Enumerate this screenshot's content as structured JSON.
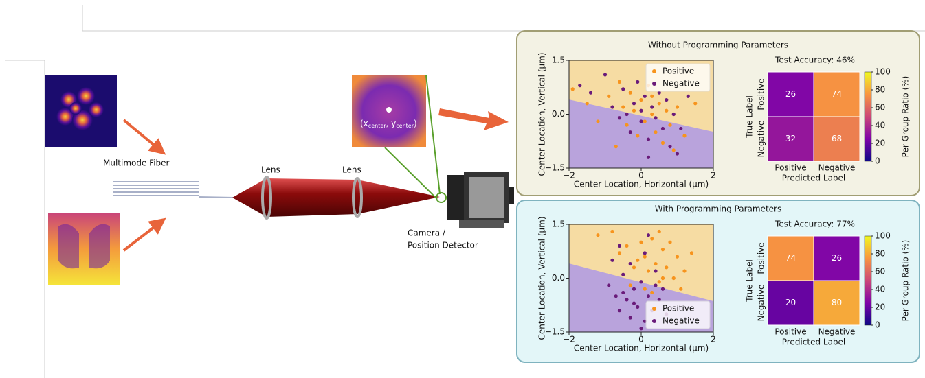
{
  "diagram": {
    "fiber_label": "Multimode Fiber",
    "lens_labels": [
      "Lens",
      "Lens"
    ],
    "camera_label": [
      "Camera /",
      "Position Detector"
    ],
    "inset_label": [
      "(x",
      "center",
      ", y",
      "center",
      ")"
    ]
  },
  "panels": [
    {
      "title": "Without Programming Parameters",
      "scatter": {
        "type": "scatter",
        "xlabel": "Center Location, Horizontal (μm)",
        "ylabel": "Center Location, Vertical (μm)",
        "xlim": [
          -2,
          2
        ],
        "ylim": [
          -1.5,
          1.5
        ],
        "xticks": [
          {
            "value": -2,
            "label": "−2"
          },
          0,
          2
        ],
        "yticks": [
          {
            "value": -1.5,
            "label": "−1.5"
          },
          {
            "value": 0,
            "label": "0.0"
          },
          1.5
        ],
        "legend": "upper right",
        "boundary": {
          "x": [
            -2,
            2
          ],
          "y": [
            0.4,
            -0.5
          ]
        },
        "series": [
          {
            "name": "Positive",
            "color": "#f7941d",
            "x": [
              -1.9,
              -1.5,
              -1.2,
              -0.9,
              -0.6,
              -0.5,
              -0.4,
              -0.3,
              -0.2,
              -0.1,
              0,
              0.1,
              0.2,
              0.3,
              0.4,
              0.5,
              0.6,
              0.7,
              0.8,
              0.9,
              1.0,
              1.2,
              1.5,
              0.3,
              -0.7
            ],
            "y": [
              0.7,
              0.3,
              -0.2,
              0.5,
              0.9,
              0.2,
              -0.3,
              0.6,
              0.1,
              -0.6,
              0.4,
              -0.2,
              0.8,
              0.0,
              -0.5,
              0.3,
              -0.8,
              0.1,
              -0.3,
              -1.0,
              0.2,
              -0.6,
              0.3,
              0.5,
              -0.9
            ]
          },
          {
            "name": "Negative",
            "color": "#6a1b7a",
            "x": [
              -1.7,
              -1.4,
              -1.0,
              -0.8,
              -0.6,
              -0.5,
              -0.3,
              -0.2,
              -0.1,
              0,
              0.1,
              0.2,
              0.3,
              0.4,
              0.5,
              0.6,
              0.7,
              0.8,
              0.9,
              1.1,
              1.3,
              -0.4,
              0.0,
              1.0,
              0.2
            ],
            "y": [
              0.8,
              0.6,
              1.1,
              0.2,
              -0.1,
              0.7,
              -0.5,
              0.3,
              0.9,
              -0.2,
              0.5,
              -0.7,
              0.2,
              -0.1,
              0.6,
              -0.4,
              0.4,
              -0.9,
              0.0,
              -0.4,
              0.5,
              0.0,
              0.1,
              -1.1,
              -1.2
            ]
          }
        ]
      },
      "matrix": {
        "type": "heatmap",
        "title": "Test Accuracy: 46%",
        "xlabel": "Predicted Label",
        "ylabel": "True Label",
        "categories": [
          "Positive",
          "Negative"
        ],
        "values": [
          [
            26,
            74
          ],
          [
            32,
            68
          ]
        ],
        "colorbar_label": "Per Group Ratio (%)",
        "clim": [
          0,
          100
        ],
        "cticks": [
          0,
          20,
          40,
          60,
          80,
          100
        ]
      }
    },
    {
      "title": "With Programming Parameters",
      "scatter": {
        "type": "scatter",
        "xlabel": "Center Location, Horizontal (μm)",
        "ylabel": "Center Location, Vertical (μm)",
        "xlim": [
          -2,
          2
        ],
        "ylim": [
          -1.5,
          1.5
        ],
        "xticks": [
          {
            "value": -2,
            "label": "−2"
          },
          0,
          2
        ],
        "yticks": [
          {
            "value": -1.5,
            "label": "−1.5"
          },
          {
            "value": 0,
            "label": "0.0"
          },
          1.5
        ],
        "legend": "lower right",
        "boundary": {
          "x": [
            -2,
            2
          ],
          "y": [
            0.4,
            -0.65
          ]
        },
        "series": [
          {
            "name": "Positive",
            "color": "#f7941d",
            "x": [
              -1.2,
              -0.8,
              -0.6,
              -0.4,
              -0.2,
              0,
              0.1,
              0.2,
              0.3,
              0.4,
              0.5,
              0.6,
              0.7,
              0.8,
              0.9,
              1.0,
              1.2,
              1.4,
              0.3,
              -0.3,
              0.5,
              0.1,
              1.1,
              -0.1,
              0.6
            ],
            "y": [
              1.2,
              1.3,
              0.7,
              0.9,
              0.3,
              1.0,
              0.6,
              0.2,
              1.1,
              0.4,
              -0.1,
              0.8,
              0.3,
              1.0,
              0.0,
              0.6,
              0.2,
              0.7,
              -0.4,
              -0.2,
              1.3,
              -0.3,
              -0.3,
              0.5,
              0.0
            ]
          },
          {
            "name": "Negative",
            "color": "#6a1b7a",
            "x": [
              -0.9,
              -0.7,
              -0.6,
              -0.5,
              -0.4,
              -0.3,
              -0.2,
              -0.1,
              0,
              0.1,
              0.2,
              0.3,
              0.4,
              0.5,
              -0.8,
              0.1,
              -0.3,
              0.6,
              0,
              -0.5,
              0.2,
              -0.6,
              0.4,
              -0.2,
              0.7
            ],
            "y": [
              -0.2,
              -0.5,
              -0.9,
              0.1,
              -0.6,
              -1.1,
              -0.3,
              -0.8,
              -0.1,
              -1.2,
              -0.5,
              -0.9,
              0.2,
              -0.6,
              0.5,
              0.7,
              0.4,
              -0.3,
              -1.4,
              -0.4,
              1.2,
              0.9,
              -0.2,
              -0.7,
              -1.0
            ]
          }
        ]
      },
      "matrix": {
        "type": "heatmap",
        "title": "Test Accuracy: 77%",
        "xlabel": "Predicted Label",
        "ylabel": "True Label",
        "categories": [
          "Positive",
          "Negative"
        ],
        "values": [
          [
            74,
            26
          ],
          [
            20,
            80
          ]
        ],
        "colorbar_label": "Per Group Ratio (%)",
        "clim": [
          0,
          100
        ],
        "cticks": [
          0,
          20,
          40,
          60,
          80,
          100
        ]
      }
    }
  ]
}
